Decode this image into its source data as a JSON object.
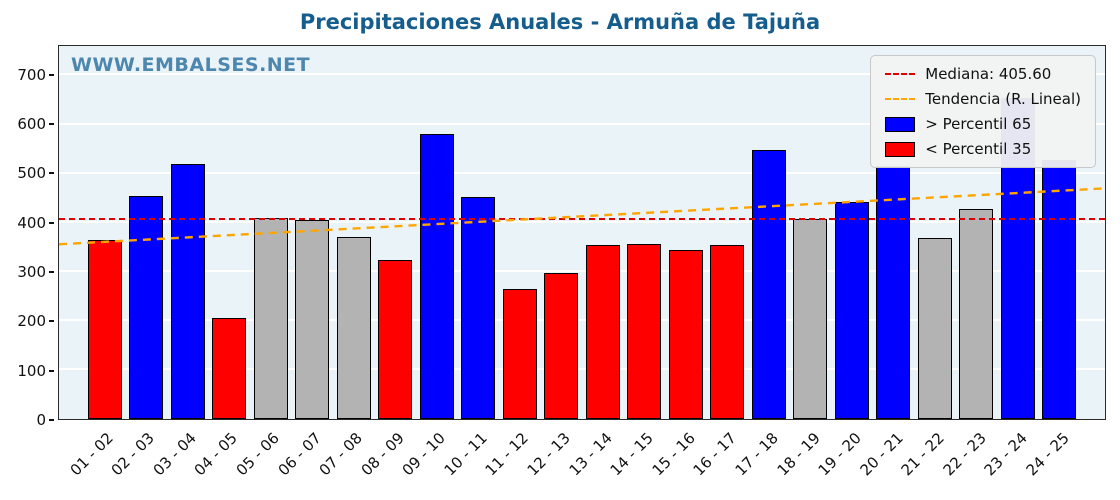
{
  "title": "Precipitaciones Anuales - Armuña de Tajuña",
  "watermark": "WWW.EMBALSES.NET",
  "legend": {
    "median_label": "Mediana: 405.60",
    "trend_label": "Tendencia (R. Lineal)",
    "p65_label": "> Percentil 65",
    "p35_label": "< Percentil 35"
  },
  "colors": {
    "above_p65": "#0000ff",
    "below_p35": "#ff0000",
    "between": "#b3b3b3",
    "median_line": "#dd0000",
    "trend_line": "#ffa500",
    "title": "#155d8d",
    "watermark": "#4d87ad",
    "plot_background": "#e9f3f8"
  },
  "chart_data": {
    "type": "bar",
    "title": "Precipitaciones Anuales - Armuña de Tajuña",
    "categories": [
      "01 - 02",
      "02 - 03",
      "03 - 04",
      "04 - 05",
      "05 - 06",
      "06 - 07",
      "07 - 08",
      "08 - 09",
      "09 - 10",
      "10 - 11",
      "11 - 12",
      "12 - 13",
      "13 - 14",
      "14 - 15",
      "15 - 16",
      "16 - 17",
      "17 - 18",
      "18 - 19",
      "19 - 20",
      "20 - 21",
      "21 - 22",
      "22 - 23",
      "23 - 24",
      "24 - 25"
    ],
    "values": [
      365,
      455,
      520,
      205,
      410,
      405,
      370,
      323,
      580,
      452,
      265,
      297,
      355,
      357,
      345,
      355,
      548,
      408,
      443,
      515,
      368,
      428,
      655,
      528
    ],
    "bar_classes": [
      "below",
      "above",
      "above",
      "below",
      "mid",
      "mid",
      "mid",
      "below",
      "above",
      "above",
      "below",
      "below",
      "below",
      "below",
      "below",
      "below",
      "above",
      "mid",
      "above",
      "above",
      "mid",
      "mid",
      "above",
      "above"
    ],
    "median": 405.6,
    "trend": {
      "start": 356,
      "end": 470
    },
    "ylim": [
      0,
      760
    ],
    "yticks": [
      0,
      100,
      200,
      300,
      400,
      500,
      600,
      700
    ],
    "xlabel": "",
    "ylabel": "",
    "grid": true,
    "legend_position": "upper right"
  }
}
